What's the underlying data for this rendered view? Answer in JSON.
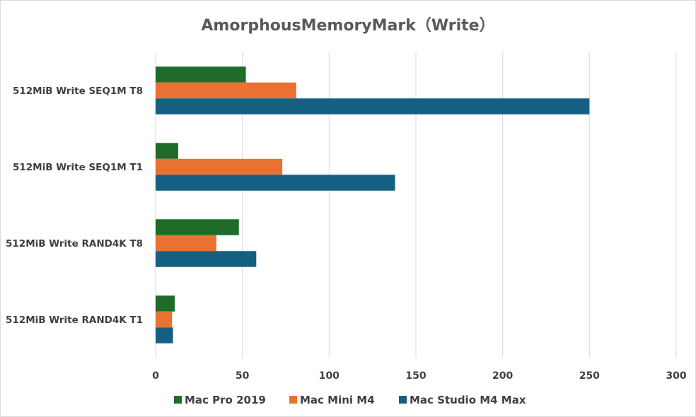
{
  "chart_data": {
    "type": "bar",
    "orientation": "horizontal",
    "title": "AmorphousMemoryMark（Write）",
    "categories": [
      "512MiB Write SEQ1M T8",
      "512MiB Write SEQ1M T1",
      "512MiB Write RAND4K T8",
      "512MiB Write RAND4K T1"
    ],
    "series": [
      {
        "name": "Mac Pro 2019",
        "color": "#1e6b2a",
        "values": [
          52,
          13,
          48,
          11
        ]
      },
      {
        "name": "Mac Mini M4",
        "color": "#e97132",
        "values": [
          81,
          73,
          35,
          9.5
        ]
      },
      {
        "name": "Mac Studio M4 Max",
        "color": "#156082",
        "values": [
          250,
          138,
          58,
          10
        ]
      }
    ],
    "xlim": [
      0,
      300
    ],
    "xticks": [
      0,
      50,
      100,
      150,
      200,
      250,
      300
    ],
    "grid": true,
    "legend_position": "bottom"
  }
}
